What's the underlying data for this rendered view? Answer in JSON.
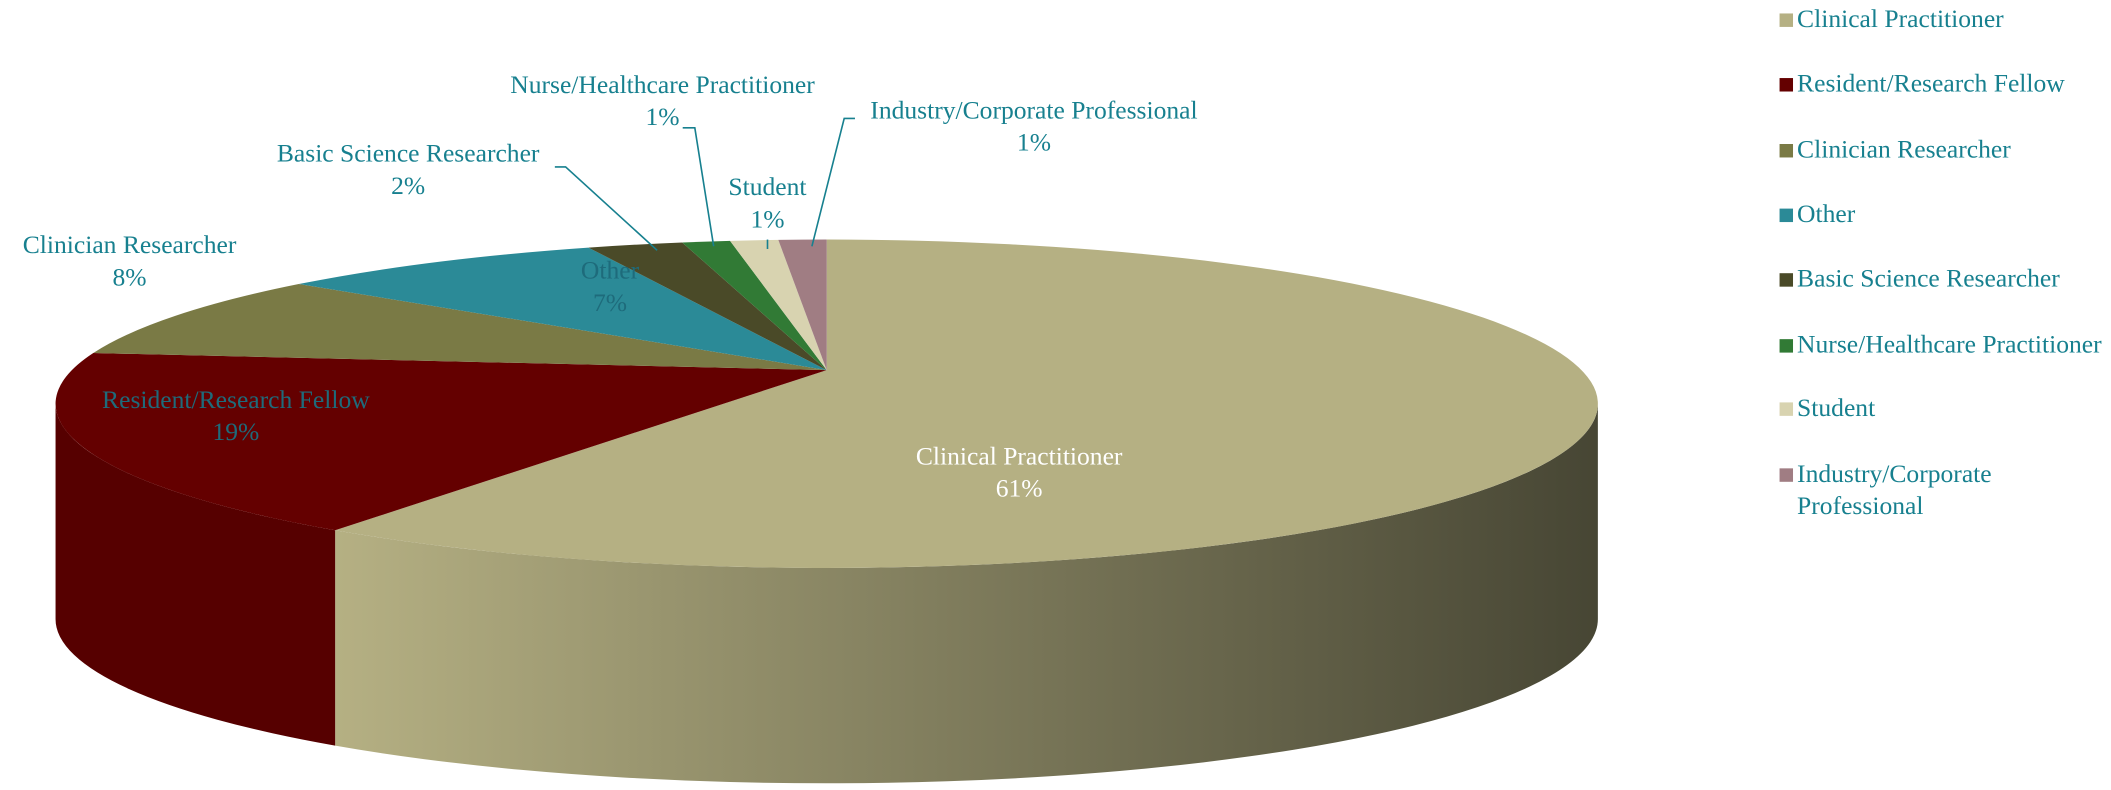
{
  "chart_data": {
    "type": "pie",
    "categories": [
      "Clinical Practitioner",
      "Resident/Research Fellow",
      "Clinician Researcher",
      "Other",
      "Basic Science Researcher",
      "Nurse/Healthcare Practitioner",
      "Student",
      "Industry/Corporate Professional"
    ],
    "values": [
      61,
      19,
      8,
      7,
      2,
      1,
      1,
      1
    ],
    "value_labels": [
      "61%",
      "19%",
      "8%",
      "7%",
      "2%",
      "1%",
      "1%",
      "1%"
    ],
    "colors": [
      "#b5b083",
      "#640000",
      "#7a7a45",
      "#2b8a97",
      "#4a4a28",
      "#317a35",
      "#d8d3b0",
      "#a07d83"
    ],
    "legend": "right"
  }
}
